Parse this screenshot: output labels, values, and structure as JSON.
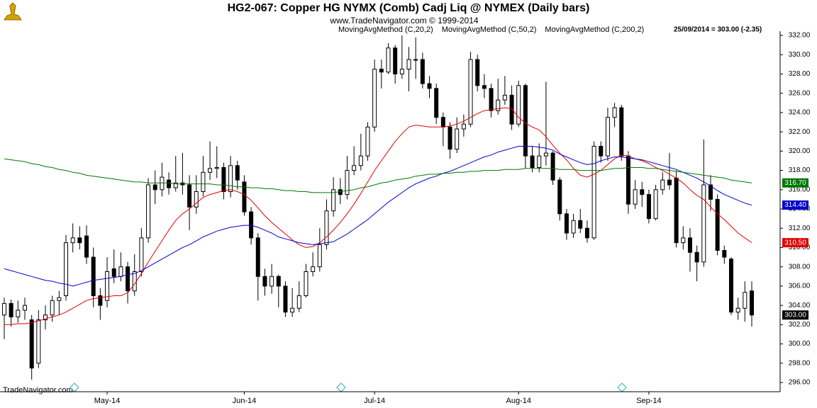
{
  "chart_data": {
    "type": "candlestick",
    "title": "HG2-067:  Copper HG NYMX (Comb) Cadj Liq @ NYMEX  (Daily bars)",
    "subtitle": "www.TradeNavigator.com © 1999-2014",
    "status": "25/09/2014 = 303.00 (-2.35)",
    "footer": "TradeNavigator.com",
    "categories": [
      null,
      null,
      null,
      null,
      null,
      null,
      null,
      null,
      null,
      null,
      null,
      null,
      null,
      null,
      null,
      "May-14",
      null,
      null,
      null,
      null,
      null,
      null,
      null,
      null,
      null,
      null,
      null,
      null,
      null,
      null,
      null,
      null,
      null,
      null,
      null,
      "Jun-14",
      null,
      null,
      null,
      null,
      null,
      null,
      null,
      null,
      null,
      null,
      null,
      null,
      null,
      null,
      null,
      null,
      null,
      null,
      "Jul-14",
      null,
      null,
      null,
      null,
      null,
      null,
      null,
      null,
      null,
      null,
      null,
      null,
      null,
      null,
      null,
      null,
      null,
      null,
      null,
      null,
      "Aug-14",
      null,
      null,
      null,
      null,
      null,
      null,
      null,
      null,
      null,
      null,
      null,
      null,
      null,
      null,
      null,
      null,
      null,
      null,
      "Sep-14",
      null,
      null,
      null,
      null,
      null,
      null,
      null,
      null,
      null,
      null,
      null,
      null,
      null,
      null,
      null
    ],
    "open": [
      303.0,
      304.2,
      302.8,
      303.5,
      302.5,
      298,
      302.5,
      303,
      304.5,
      305,
      310.5,
      311,
      311.2,
      309,
      305,
      304.5,
      307.8,
      307,
      308,
      305.5,
      307.5,
      311,
      316.5,
      316,
      317,
      316.2,
      316.7,
      316.5,
      314.2,
      315.8,
      317.8,
      318.2,
      318.3,
      315.8,
      318.5,
      316.8,
      313.7,
      311,
      307,
      306,
      307,
      306,
      303.3,
      303.7,
      305,
      307.5,
      308,
      310.3,
      313.8,
      316,
      315.5,
      318,
      318.5,
      319.5,
      322.5,
      328.5,
      328.2,
      330.7,
      328,
      328.5,
      329.5,
      329.5,
      327,
      326.5,
      323.5,
      322.5,
      320.2,
      322.3,
      322.8,
      329.5,
      326.8,
      326.5,
      324.2,
      325.3,
      325.8,
      322.8,
      326.8,
      319.5,
      318.3,
      319.5,
      319.8,
      317,
      313.5,
      311.5,
      312.8,
      312,
      311,
      320.5,
      319.5,
      323.5,
      324.5,
      319.5,
      314.5,
      316,
      315.5,
      313,
      316,
      317,
      317.2,
      310.5,
      311,
      309.5,
      308.5,
      316.5,
      315,
      309.7,
      308.8,
      303.3,
      303.7,
      305.5
    ],
    "high": [
      304.8,
      304.6,
      304.5,
      304.8,
      303,
      303.5,
      304,
      305,
      305.5,
      311.3,
      312.5,
      312.2,
      312.3,
      310,
      305.8,
      309,
      309.8,
      309.5,
      308.5,
      309.3,
      312,
      317.2,
      318,
      318.8,
      317.8,
      319.5,
      319.8,
      317.5,
      317.5,
      319.5,
      321,
      320.5,
      318.8,
      319.5,
      319,
      317.5,
      314.2,
      311.5,
      307.8,
      308.3,
      307.2,
      306.5,
      305.8,
      306.5,
      308.3,
      309.5,
      312,
      315,
      317.3,
      317.2,
      319.5,
      320.5,
      321.8,
      323,
      329.5,
      329.5,
      331.2,
      331,
      332,
      330.8,
      331.8,
      330.2,
      327.8,
      327,
      324,
      323,
      323.5,
      323.8,
      330.3,
      330,
      328,
      327,
      327.5,
      327.8,
      326.8,
      327.3,
      327,
      320.5,
      320.8,
      327.2,
      320,
      317.3,
      314,
      313.5,
      314,
      312.8,
      321,
      321,
      324.5,
      325,
      324.8,
      320,
      317,
      316.8,
      316,
      316.5,
      317.8,
      319.8,
      318,
      312.2,
      312,
      310.2,
      321.2,
      317.5,
      315.5,
      310.2,
      309,
      304.8,
      306.5,
      306.5
    ],
    "low": [
      300.5,
      301.8,
      302.2,
      302.5,
      296.3,
      297.5,
      301.5,
      302.3,
      303,
      304.5,
      309.5,
      309.8,
      308.3,
      303.8,
      302.5,
      303.8,
      306.3,
      306.5,
      304.2,
      305,
      307,
      310.5,
      314.5,
      315.3,
      315.5,
      315.8,
      315.5,
      311.8,
      313.5,
      315.3,
      317,
      317.2,
      315,
      315.2,
      316,
      313.3,
      310.3,
      304.5,
      305,
      305.2,
      303.8,
      302.8,
      302.8,
      303.3,
      304.8,
      307,
      307.5,
      309.8,
      313.2,
      314.5,
      315,
      317.5,
      318,
      319,
      322,
      326.5,
      328,
      327,
      327.5,
      326.2,
      327.5,
      326.5,
      325.5,
      322.8,
      320.5,
      319.2,
      319.8,
      321.5,
      322.5,
      326.2,
      325.5,
      323.5,
      323.8,
      324.8,
      322.2,
      322.5,
      318.2,
      317.8,
      317.8,
      318.5,
      316.5,
      312.8,
      310.8,
      311,
      311.5,
      310.5,
      310.8,
      318.8,
      319,
      322.5,
      319,
      313.5,
      314,
      314.2,
      312.5,
      312.8,
      315.5,
      316,
      310,
      309.8,
      307.5,
      306.5,
      308,
      313.8,
      309.2,
      308.3,
      303,
      302.5,
      302.3,
      301.8
    ],
    "close": [
      304.2,
      302.8,
      303.5,
      304,
      297.5,
      302.5,
      303,
      304.5,
      304.8,
      310.5,
      311,
      310.5,
      309,
      305,
      304,
      307.5,
      307,
      308,
      305.5,
      307.5,
      311,
      316.5,
      316,
      317.3,
      316.2,
      316.7,
      316.5,
      314.2,
      315.8,
      317.8,
      318.2,
      318.3,
      315.8,
      318.5,
      317,
      313.7,
      311,
      307,
      306,
      307,
      306,
      303.3,
      303.7,
      305,
      307.5,
      308,
      310.3,
      313.8,
      316,
      315.5,
      318,
      318.5,
      319.5,
      322.5,
      328.5,
      328.2,
      330.7,
      328,
      328.5,
      329.5,
      329.5,
      327,
      326.5,
      323.5,
      322.5,
      320.2,
      322.3,
      322.8,
      329.5,
      326.8,
      326.5,
      324.2,
      325.3,
      325.8,
      322.8,
      326.8,
      319.5,
      318.3,
      319.5,
      319.8,
      317,
      313.5,
      311.5,
      312.8,
      312,
      311,
      320.5,
      319.5,
      323.5,
      324.5,
      319.5,
      314.5,
      316,
      315.5,
      313,
      316,
      317,
      316.5,
      310.5,
      311,
      309.5,
      308.5,
      316.5,
      315,
      309.7,
      309,
      303.3,
      303.7,
      305.35,
      303
    ],
    "close_end_label": "303.00",
    "series": [
      {
        "name": "MovingAvgMethod (C,20,2)",
        "color": "#e00000",
        "end_label": "310.50",
        "values": [
          302.0,
          302.0,
          302.1,
          302.1,
          302.2,
          302.4,
          302.6,
          302.8,
          303.0,
          303.3,
          303.7,
          304.1,
          304.5,
          304.7,
          304.8,
          304.9,
          305.0,
          305.0,
          305.3,
          306.2,
          307.3,
          308.5,
          309.6,
          310.7,
          311.8,
          312.8,
          313.5,
          314.0,
          314.6,
          315.2,
          315.5,
          315.7,
          315.9,
          316.0,
          315.8,
          315.5,
          314.9,
          314.1,
          313.3,
          312.6,
          312.0,
          311.4,
          310.8,
          310.3,
          310.0,
          310.1,
          310.5,
          311.1,
          311.8,
          312.6,
          313.5,
          314.5,
          315.6,
          316.8,
          318.0,
          319.0,
          320.0,
          321.0,
          321.8,
          322.5,
          322.7,
          322.6,
          322.5,
          322.5,
          322.5,
          322.6,
          322.8,
          323.1,
          323.5,
          323.9,
          324.2,
          324.3,
          324.4,
          324.5,
          324.4,
          323.5,
          322.9,
          322.5,
          322.2,
          321.5,
          320.6,
          319.8,
          319.1,
          318.2,
          317.5,
          317.3,
          317.6,
          318.0,
          318.6,
          319.2,
          319.6,
          319.5,
          319.2,
          319.0,
          318.7,
          318.3,
          318.0,
          317.6,
          317.2,
          316.7,
          316.0,
          315.4,
          315.0,
          314.2,
          313.5,
          312.9,
          312.2,
          311.5,
          311.0,
          310.5
        ]
      },
      {
        "name": "MovingAvgMethod (C,50,2)",
        "color": "#0000cc",
        "end_label": "314.40",
        "values": [
          307.8,
          307.6,
          307.4,
          307.2,
          307.0,
          306.8,
          306.6,
          306.5,
          306.3,
          306.2,
          306.0,
          306.2,
          306.4,
          306.6,
          306.7,
          306.8,
          306.9,
          307.0,
          307.2,
          307.3,
          307.6,
          308.0,
          308.4,
          308.8,
          309.2,
          309.6,
          310.0,
          310.3,
          310.7,
          311.1,
          311.4,
          311.7,
          311.9,
          312.1,
          312.2,
          312.3,
          312.3,
          312.1,
          311.8,
          311.5,
          311.1,
          310.9,
          310.7,
          310.5,
          310.4,
          310.3,
          310.4,
          310.5,
          310.6,
          311.0,
          311.4,
          311.9,
          312.4,
          312.9,
          313.5,
          314.1,
          314.7,
          315.2,
          315.7,
          316.2,
          316.6,
          316.9,
          317.2,
          317.4,
          317.7,
          317.9,
          318.2,
          318.5,
          318.8,
          319.1,
          319.4,
          319.6,
          319.9,
          320.1,
          320.3,
          320.5,
          320.5,
          320.5,
          320.4,
          320.3,
          320.1,
          319.7,
          319.4,
          319.1,
          318.8,
          318.6,
          318.7,
          319.0,
          319.2,
          319.4,
          319.4,
          319.3,
          319.2,
          319.1,
          318.9,
          318.7,
          318.5,
          318.3,
          318.1,
          317.8,
          317.5,
          317.2,
          316.8,
          316.4,
          315.9,
          315.5,
          315.2,
          314.9,
          314.6,
          314.4
        ]
      },
      {
        "name": "MovingAvgMethod (C,200,2)",
        "color": "#007700",
        "end_label": "316.70",
        "values": [
          319.2,
          319.1,
          319.0,
          318.9,
          318.7,
          318.6,
          318.4,
          318.3,
          318.1,
          318.0,
          317.8,
          317.7,
          317.5,
          317.4,
          317.3,
          317.2,
          317.1,
          317.0,
          316.9,
          316.8,
          316.8,
          316.7,
          316.7,
          316.7,
          316.7,
          316.6,
          316.6,
          316.6,
          316.6,
          316.6,
          316.6,
          316.5,
          316.5,
          316.4,
          316.3,
          316.3,
          316.2,
          316.2,
          316.1,
          316.1,
          316.0,
          315.9,
          315.9,
          315.8,
          315.8,
          315.7,
          315.7,
          315.7,
          315.7,
          315.8,
          315.9,
          316.0,
          316.2,
          316.3,
          316.5,
          316.7,
          316.8,
          317.0,
          317.1,
          317.2,
          317.4,
          317.5,
          317.6,
          317.6,
          317.7,
          317.7,
          317.8,
          317.8,
          317.9,
          317.9,
          318.0,
          318.0,
          318.0,
          318.1,
          318.1,
          318.1,
          318.2,
          318.2,
          318.2,
          318.2,
          318.2,
          318.1,
          318.1,
          318.1,
          318.0,
          318.0,
          318.0,
          318.0,
          318.1,
          318.2,
          318.2,
          318.3,
          318.3,
          318.3,
          318.2,
          318.2,
          318.1,
          318.0,
          317.9,
          317.8,
          317.7,
          317.6,
          317.5,
          317.4,
          317.3,
          317.2,
          317.0,
          316.9,
          316.8,
          316.7
        ]
      }
    ],
    "ylim": [
      296,
      332
    ],
    "yticks": [
      {
        "value": 296,
        "label": "296.00"
      },
      {
        "value": 298,
        "label": "298.00"
      },
      {
        "value": 300,
        "label": "300.00"
      },
      {
        "value": 302,
        "label": "302.00"
      },
      {
        "value": 304,
        "label": "304.00"
      },
      {
        "value": 306,
        "label": "306.00"
      },
      {
        "value": 308,
        "label": "308.00"
      },
      {
        "value": 310,
        "label": "310.00"
      },
      {
        "value": 312,
        "label": "312.00"
      },
      {
        "value": 314,
        "label": "314.00"
      },
      {
        "value": 316,
        "label": "316.00"
      },
      {
        "value": 318,
        "label": "318.00"
      },
      {
        "value": 320,
        "label": "320.00"
      },
      {
        "value": 322,
        "label": "322.00"
      },
      {
        "value": 324,
        "label": "324.00"
      },
      {
        "value": 326,
        "label": "326.00"
      },
      {
        "value": 328,
        "label": "328.00"
      },
      {
        "value": 330,
        "label": "330.00"
      },
      {
        "value": 332,
        "label": "332.00"
      }
    ],
    "up_color": "#ffffff",
    "down_color": "#000000"
  }
}
